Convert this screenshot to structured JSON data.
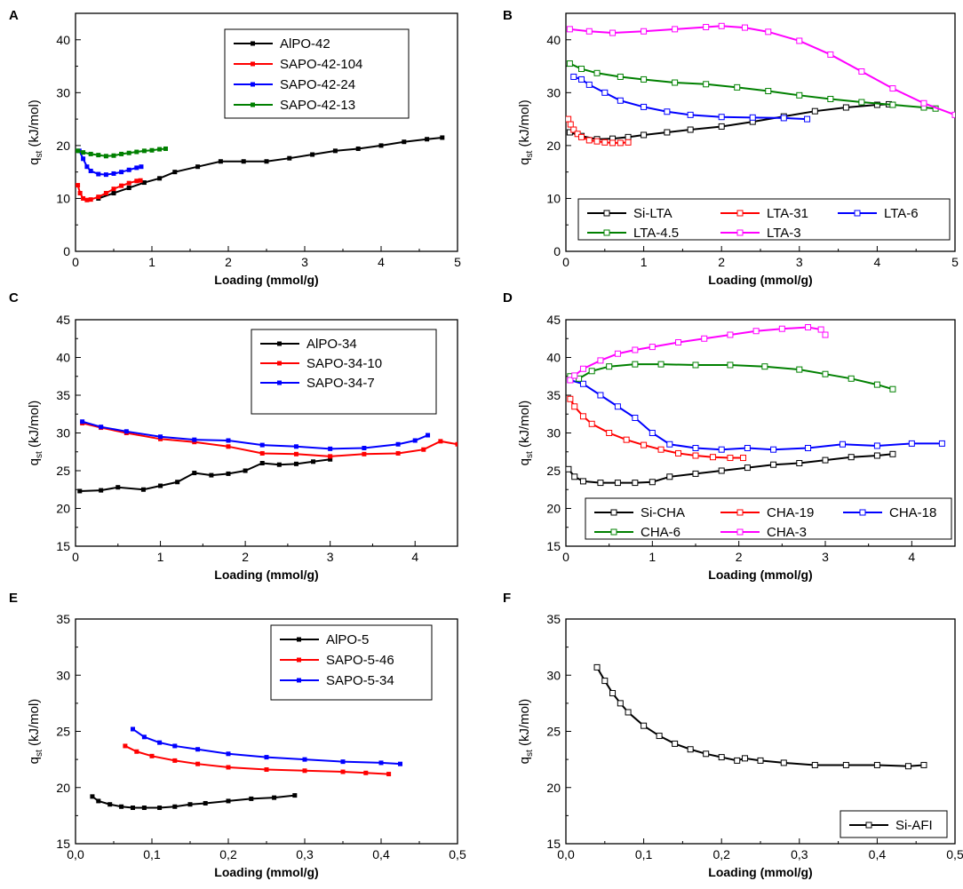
{
  "figure": {
    "colors": {
      "black": "#000000",
      "red": "#ff0000",
      "blue": "#0000ff",
      "green": "#008000",
      "magenta": "#ff00ff"
    }
  },
  "chart_data": [
    {
      "panel": "A",
      "type": "line",
      "xlabel": "Loading (mmol/g)",
      "ylabel": "q",
      "ylabel_sub": "st",
      "ylabel_unit": " (kJ/mol)",
      "xlim": [
        0,
        5
      ],
      "ylim": [
        0,
        45
      ],
      "xticks": [
        0,
        1,
        2,
        3,
        4,
        5
      ],
      "xtick_labels": [
        "0",
        "1",
        "2",
        "3",
        "4",
        "5"
      ],
      "yticks": [
        0,
        10,
        20,
        30,
        40
      ],
      "ytick_labels": [
        "0",
        "10",
        "20",
        "30",
        "40"
      ],
      "legend": {
        "placement": "top-right",
        "columns": 1
      },
      "series": [
        {
          "name": "AlPO-42",
          "color": "#000000",
          "marker": "filled",
          "x": [
            0.3,
            0.5,
            0.7,
            0.9,
            1.1,
            1.3,
            1.6,
            1.9,
            2.2,
            2.5,
            2.8,
            3.1,
            3.4,
            3.7,
            4.0,
            4.3,
            4.6,
            4.8
          ],
          "y": [
            10.0,
            11.0,
            12.0,
            13.0,
            13.8,
            15.0,
            16.0,
            17.0,
            17.0,
            17.0,
            17.6,
            18.3,
            19.0,
            19.4,
            20.0,
            20.7,
            21.2,
            21.5
          ]
        },
        {
          "name": "SAPO-42-104",
          "color": "#ff0000",
          "marker": "filled",
          "x": [
            0.03,
            0.06,
            0.1,
            0.15,
            0.2,
            0.3,
            0.4,
            0.5,
            0.6,
            0.7,
            0.8,
            0.85
          ],
          "y": [
            12.5,
            11.0,
            10.0,
            9.7,
            9.8,
            10.3,
            11.0,
            11.8,
            12.4,
            12.9,
            13.3,
            13.4
          ]
        },
        {
          "name": "SAPO-42-24",
          "color": "#0000ff",
          "marker": "filled",
          "x": [
            0.05,
            0.1,
            0.15,
            0.2,
            0.3,
            0.4,
            0.5,
            0.6,
            0.7,
            0.8,
            0.86
          ],
          "y": [
            19.0,
            17.5,
            16.0,
            15.2,
            14.6,
            14.5,
            14.7,
            15.0,
            15.4,
            15.8,
            16.0
          ]
        },
        {
          "name": "SAPO-42-13",
          "color": "#008000",
          "marker": "filled",
          "x": [
            0.03,
            0.1,
            0.2,
            0.3,
            0.4,
            0.5,
            0.6,
            0.7,
            0.8,
            0.9,
            1.0,
            1.1,
            1.18
          ],
          "y": [
            19.0,
            18.7,
            18.4,
            18.2,
            18.0,
            18.1,
            18.4,
            18.6,
            18.8,
            19.0,
            19.1,
            19.3,
            19.4
          ]
        }
      ]
    },
    {
      "panel": "B",
      "type": "line",
      "xlabel": "Loading (mmol/g)",
      "ylabel": "q",
      "ylabel_sub": "st",
      "ylabel_unit": " (kJ/mol)",
      "xlim": [
        0,
        5
      ],
      "ylim": [
        0,
        45
      ],
      "xticks": [
        0,
        1,
        2,
        3,
        4,
        5
      ],
      "xtick_labels": [
        "0",
        "1",
        "2",
        "3",
        "4",
        "5"
      ],
      "yticks": [
        0,
        10,
        20,
        30,
        40
      ],
      "ytick_labels": [
        "0",
        "10",
        "20",
        "30",
        "40"
      ],
      "legend": {
        "placement": "bottom",
        "columns": 3
      },
      "series": [
        {
          "name": "Si-LTA",
          "color": "#000000",
          "marker": "open",
          "x": [
            0.05,
            0.2,
            0.4,
            0.6,
            0.8,
            1.0,
            1.3,
            1.6,
            2.0,
            2.4,
            2.8,
            3.2,
            3.6,
            4.0,
            4.15
          ],
          "y": [
            22.5,
            21.8,
            21.2,
            21.3,
            21.6,
            22.0,
            22.5,
            23.0,
            23.6,
            24.5,
            25.5,
            26.5,
            27.2,
            27.7,
            27.8
          ]
        },
        {
          "name": "LTA-31",
          "color": "#ff0000",
          "marker": "open",
          "x": [
            0.03,
            0.06,
            0.1,
            0.15,
            0.2,
            0.3,
            0.4,
            0.5,
            0.6,
            0.7,
            0.8
          ],
          "y": [
            25.0,
            24.0,
            23.0,
            22.2,
            21.6,
            21.0,
            20.8,
            20.6,
            20.5,
            20.5,
            20.6
          ]
        },
        {
          "name": "LTA-6",
          "color": "#0000ff",
          "marker": "open",
          "x": [
            0.1,
            0.2,
            0.3,
            0.5,
            0.7,
            1.0,
            1.3,
            1.6,
            2.0,
            2.4,
            2.8,
            3.1
          ],
          "y": [
            33.0,
            32.5,
            31.5,
            30.0,
            28.5,
            27.3,
            26.4,
            25.8,
            25.4,
            25.3,
            25.2,
            25.0
          ]
        },
        {
          "name": "LTA-4.5",
          "color": "#008000",
          "marker": "open",
          "x": [
            0.05,
            0.2,
            0.4,
            0.7,
            1.0,
            1.4,
            1.8,
            2.2,
            2.6,
            3.0,
            3.4,
            3.8,
            4.2,
            4.6,
            4.75
          ],
          "y": [
            35.5,
            34.5,
            33.7,
            33.0,
            32.5,
            31.9,
            31.6,
            31.0,
            30.3,
            29.5,
            28.8,
            28.2,
            27.7,
            27.2,
            27.0
          ]
        },
        {
          "name": "LTA-3",
          "color": "#ff00ff",
          "marker": "open",
          "x": [
            0.05,
            0.3,
            0.6,
            1.0,
            1.4,
            1.8,
            2.0,
            2.3,
            2.6,
            3.0,
            3.4,
            3.8,
            4.2,
            4.6,
            5.0
          ],
          "y": [
            42.0,
            41.6,
            41.3,
            41.6,
            42.0,
            42.4,
            42.6,
            42.3,
            41.5,
            39.8,
            37.2,
            34.0,
            30.8,
            28.0,
            25.8
          ]
        }
      ]
    },
    {
      "panel": "C",
      "type": "line",
      "xlabel": "Loading (mmol/g)",
      "ylabel": "q",
      "ylabel_sub": "st",
      "ylabel_unit": " (kJ/mol)",
      "xlim": [
        0,
        4.5
      ],
      "ylim": [
        15,
        45
      ],
      "xticks": [
        0,
        1,
        2,
        3,
        4
      ],
      "xtick_labels": [
        "0",
        "1",
        "2",
        "3",
        "4"
      ],
      "yticks": [
        15,
        20,
        25,
        30,
        35,
        40,
        45
      ],
      "ytick_labels": [
        "15",
        "20",
        "25",
        "30",
        "35",
        "40",
        "45"
      ],
      "legend": {
        "placement": "top-right",
        "columns": 1
      },
      "series": [
        {
          "name": "AlPO-34",
          "color": "#000000",
          "marker": "filled",
          "x": [
            0.05,
            0.3,
            0.5,
            0.8,
            1.0,
            1.2,
            1.4,
            1.6,
            1.8,
            2.0,
            2.2,
            2.4,
            2.6,
            2.8,
            3.0
          ],
          "y": [
            22.3,
            22.4,
            22.8,
            22.5,
            23.0,
            23.5,
            24.7,
            24.4,
            24.6,
            25.0,
            26.0,
            25.8,
            25.9,
            26.2,
            26.5
          ]
        },
        {
          "name": "SAPO-34-10",
          "color": "#ff0000",
          "marker": "filled",
          "x": [
            0.08,
            0.3,
            0.6,
            1.0,
            1.4,
            1.8,
            2.2,
            2.6,
            3.0,
            3.4,
            3.8,
            4.1,
            4.3,
            4.5
          ],
          "y": [
            31.3,
            30.7,
            30.0,
            29.2,
            28.8,
            28.2,
            27.3,
            27.2,
            26.9,
            27.2,
            27.3,
            27.8,
            28.9,
            28.5
          ]
        },
        {
          "name": "SAPO-34-7",
          "color": "#0000ff",
          "marker": "filled",
          "x": [
            0.08,
            0.3,
            0.6,
            1.0,
            1.4,
            1.8,
            2.2,
            2.6,
            3.0,
            3.4,
            3.8,
            4.0,
            4.15
          ],
          "y": [
            31.5,
            30.8,
            30.2,
            29.5,
            29.1,
            29.0,
            28.4,
            28.2,
            27.9,
            28.0,
            28.5,
            29.0,
            29.7
          ]
        }
      ]
    },
    {
      "panel": "D",
      "type": "line",
      "xlabel": "Loading (mmol/g)",
      "ylabel": "q",
      "ylabel_sub": "st",
      "ylabel_unit": " (kJ/mol)",
      "xlim": [
        0,
        4.5
      ],
      "ylim": [
        15,
        45
      ],
      "xticks": [
        0,
        1,
        2,
        3,
        4
      ],
      "xtick_labels": [
        "0",
        "1",
        "2",
        "3",
        "4"
      ],
      "yticks": [
        15,
        20,
        25,
        30,
        35,
        40,
        45
      ],
      "ytick_labels": [
        "15",
        "20",
        "25",
        "30",
        "35",
        "40",
        "45"
      ],
      "legend": {
        "placement": "bottom",
        "columns": 3
      },
      "series": [
        {
          "name": "Si-CHA",
          "color": "#000000",
          "marker": "open",
          "x": [
            0.03,
            0.1,
            0.2,
            0.4,
            0.6,
            0.8,
            1.0,
            1.2,
            1.5,
            1.8,
            2.1,
            2.4,
            2.7,
            3.0,
            3.3,
            3.6,
            3.78
          ],
          "y": [
            25.2,
            24.2,
            23.6,
            23.4,
            23.4,
            23.4,
            23.5,
            24.2,
            24.6,
            25.0,
            25.4,
            25.8,
            26.0,
            26.4,
            26.8,
            27.0,
            27.2
          ]
        },
        {
          "name": "CHA-19",
          "color": "#ff0000",
          "marker": "open",
          "x": [
            0.05,
            0.1,
            0.2,
            0.3,
            0.5,
            0.7,
            0.9,
            1.1,
            1.3,
            1.5,
            1.7,
            1.9,
            2.05
          ],
          "y": [
            34.5,
            33.5,
            32.2,
            31.2,
            30.0,
            29.1,
            28.4,
            27.8,
            27.3,
            27.0,
            26.8,
            26.7,
            26.7
          ]
        },
        {
          "name": "CHA-18",
          "color": "#0000ff",
          "marker": "open",
          "x": [
            0.05,
            0.2,
            0.4,
            0.6,
            0.8,
            1.0,
            1.2,
            1.5,
            1.8,
            2.1,
            2.4,
            2.8,
            3.2,
            3.6,
            4.0,
            4.35
          ],
          "y": [
            37.0,
            36.5,
            35.0,
            33.5,
            32.0,
            30.0,
            28.5,
            28.0,
            27.8,
            28.0,
            27.8,
            28.0,
            28.5,
            28.3,
            28.6,
            28.6
          ]
        },
        {
          "name": "CHA-6",
          "color": "#008000",
          "marker": "open",
          "x": [
            0.05,
            0.15,
            0.3,
            0.5,
            0.8,
            1.1,
            1.5,
            1.9,
            2.3,
            2.7,
            3.0,
            3.3,
            3.6,
            3.78
          ],
          "y": [
            37.5,
            37.2,
            38.2,
            38.8,
            39.1,
            39.1,
            39.0,
            39.0,
            38.8,
            38.4,
            37.8,
            37.2,
            36.4,
            35.8
          ]
        },
        {
          "name": "CHA-3",
          "color": "#ff00ff",
          "marker": "open",
          "x": [
            0.05,
            0.1,
            0.2,
            0.4,
            0.6,
            0.8,
            1.0,
            1.3,
            1.6,
            1.9,
            2.2,
            2.5,
            2.8,
            2.95,
            3.0
          ],
          "y": [
            37.0,
            37.6,
            38.5,
            39.6,
            40.5,
            41.0,
            41.4,
            42.0,
            42.5,
            43.0,
            43.5,
            43.8,
            44.0,
            43.7,
            43.0
          ]
        }
      ]
    },
    {
      "panel": "E",
      "type": "line",
      "xlabel": "Loading (mmol/g)",
      "ylabel": "q",
      "ylabel_sub": "st",
      "ylabel_unit": " (kJ/mol)",
      "xlim": [
        0,
        0.5
      ],
      "ylim": [
        15,
        35
      ],
      "xticks": [
        0,
        0.1,
        0.2,
        0.3,
        0.4,
        0.5
      ],
      "xtick_labels": [
        "0,0",
        "0,1",
        "0,2",
        "0,3",
        "0,4",
        "0,5"
      ],
      "yticks": [
        15,
        20,
        25,
        30,
        35
      ],
      "ytick_labels": [
        "15",
        "20",
        "25",
        "30",
        "35"
      ],
      "legend": {
        "placement": "top-right",
        "columns": 1
      },
      "series": [
        {
          "name": "AlPO-5",
          "color": "#000000",
          "marker": "filled",
          "x": [
            0.022,
            0.03,
            0.045,
            0.06,
            0.075,
            0.09,
            0.11,
            0.13,
            0.15,
            0.17,
            0.2,
            0.23,
            0.26,
            0.287
          ],
          "y": [
            19.2,
            18.8,
            18.5,
            18.3,
            18.2,
            18.2,
            18.2,
            18.3,
            18.5,
            18.6,
            18.8,
            19.0,
            19.1,
            19.3
          ]
        },
        {
          "name": "SAPO-5-46",
          "color": "#ff0000",
          "marker": "filled",
          "x": [
            0.065,
            0.08,
            0.1,
            0.13,
            0.16,
            0.2,
            0.25,
            0.3,
            0.35,
            0.38,
            0.41
          ],
          "y": [
            23.7,
            23.2,
            22.8,
            22.4,
            22.1,
            21.8,
            21.6,
            21.5,
            21.4,
            21.3,
            21.2
          ]
        },
        {
          "name": "SAPO-5-34",
          "color": "#0000ff",
          "marker": "filled",
          "x": [
            0.075,
            0.09,
            0.11,
            0.13,
            0.16,
            0.2,
            0.25,
            0.3,
            0.35,
            0.4,
            0.425
          ],
          "y": [
            25.2,
            24.5,
            24.0,
            23.7,
            23.4,
            23.0,
            22.7,
            22.5,
            22.3,
            22.2,
            22.1
          ]
        }
      ]
    },
    {
      "panel": "F",
      "type": "line",
      "xlabel": "Loading (mmol/g)",
      "ylabel": "q",
      "ylabel_sub": "st",
      "ylabel_unit": " (kJ/mol)",
      "xlim": [
        0,
        0.5
      ],
      "ylim": [
        15,
        35
      ],
      "xticks": [
        0,
        0.1,
        0.2,
        0.3,
        0.4,
        0.5
      ],
      "xtick_labels": [
        "0,0",
        "0,1",
        "0,2",
        "0,3",
        "0,4",
        "0,5"
      ],
      "yticks": [
        15,
        20,
        25,
        30,
        35
      ],
      "ytick_labels": [
        "15",
        "20",
        "25",
        "30",
        "35"
      ],
      "legend": {
        "placement": "bottom-right",
        "columns": 1
      },
      "series": [
        {
          "name": "Si-AFI",
          "color": "#000000",
          "marker": "open",
          "x": [
            0.04,
            0.05,
            0.06,
            0.07,
            0.08,
            0.1,
            0.12,
            0.14,
            0.16,
            0.18,
            0.2,
            0.22,
            0.23,
            0.25,
            0.28,
            0.32,
            0.36,
            0.4,
            0.44,
            0.46
          ],
          "y": [
            30.7,
            29.5,
            28.4,
            27.5,
            26.7,
            25.5,
            24.6,
            23.9,
            23.4,
            23.0,
            22.7,
            22.4,
            22.6,
            22.4,
            22.2,
            22.0,
            22.0,
            22.0,
            21.9,
            22.0
          ]
        }
      ]
    }
  ]
}
